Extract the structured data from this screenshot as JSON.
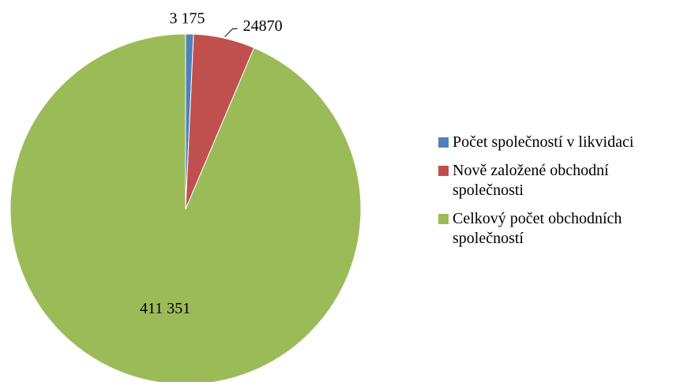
{
  "chart_data": {
    "type": "pie",
    "categories": [
      "Počet společností v likvidaci",
      "Nově založené obchodní společnosti",
      "Celkový počet obchodních společností"
    ],
    "values": [
      3175,
      24870,
      411351
    ],
    "value_labels": [
      "3 175",
      "24870",
      "411 351"
    ],
    "colors": [
      "#4f81bd",
      "#c0504d",
      "#9bbb59"
    ],
    "legend": "right"
  }
}
